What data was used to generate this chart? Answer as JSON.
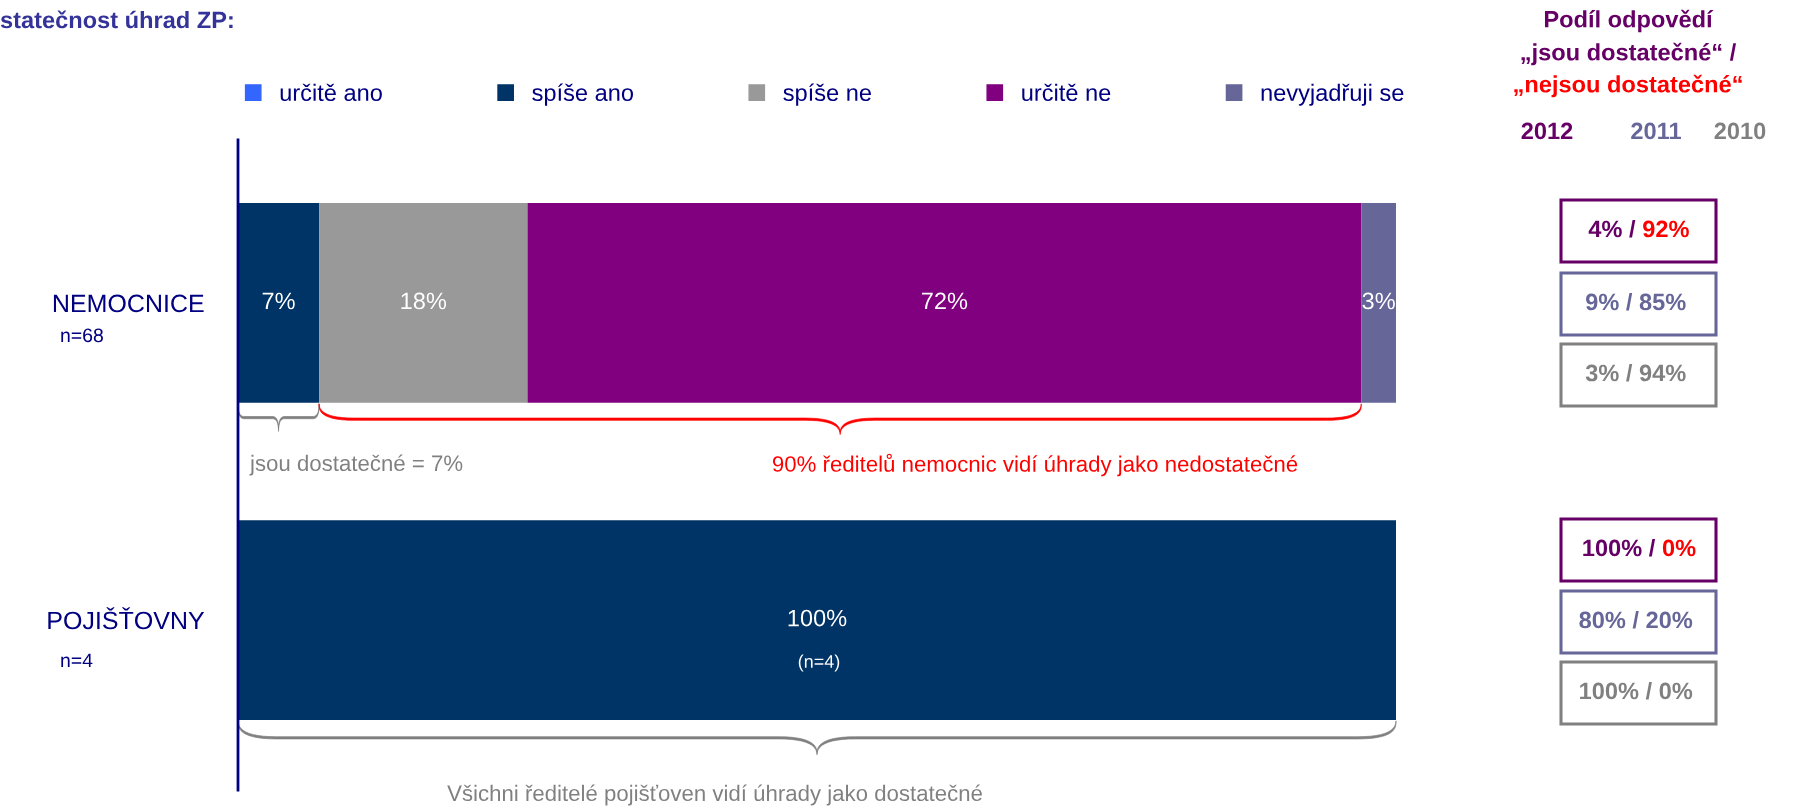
{
  "chart_data": {
    "type": "bar",
    "orientation": "horizontal",
    "stacked": true,
    "title": "statečnost úhrad ZP:",
    "categories": [
      "NEMOCNICE",
      "POJIŠŤOVNY"
    ],
    "series": [
      {
        "name": "určitě ano",
        "color": "#3366ff",
        "values": [
          0,
          0
        ],
        "value_labels": [
          null,
          null
        ]
      },
      {
        "name": "spíše ano",
        "color": "#003366",
        "values": [
          7,
          100
        ],
        "value_labels": [
          "7%",
          "100%"
        ]
      },
      {
        "name": "spíše ne",
        "color": "#999999",
        "values": [
          18,
          0
        ],
        "value_labels": [
          "18%",
          null
        ]
      },
      {
        "name": "určitě ne",
        "color": "#800080",
        "values": [
          72,
          0
        ],
        "value_labels": [
          "72%",
          null
        ]
      },
      {
        "name": "nevyjadřuji se",
        "color": "#666699",
        "values": [
          3,
          0
        ],
        "value_labels": [
          "3%",
          null
        ]
      }
    ],
    "legend": "top",
    "grid": false,
    "tick_labels": "y",
    "annotations": [
      "n=68",
      "n=4",
      "(n=4)",
      "jsou dostatečné = 7%",
      "90% ředitelů nemocnic vidí úhrady jako nedostatečné",
      "Všichni ředitelé pojišťoven vidí úhrady jako dostatečné",
      "Podíl odpovědí",
      "„jsou dostatečné“ /",
      "„nejsou dostatečné“",
      "2012",
      "2011",
      "2010",
      "4% /",
      "92%",
      "9% / 85%",
      "3% / 94%",
      "100% /",
      "0%",
      "80% / 20%",
      "100% / 0%"
    ]
  }
}
